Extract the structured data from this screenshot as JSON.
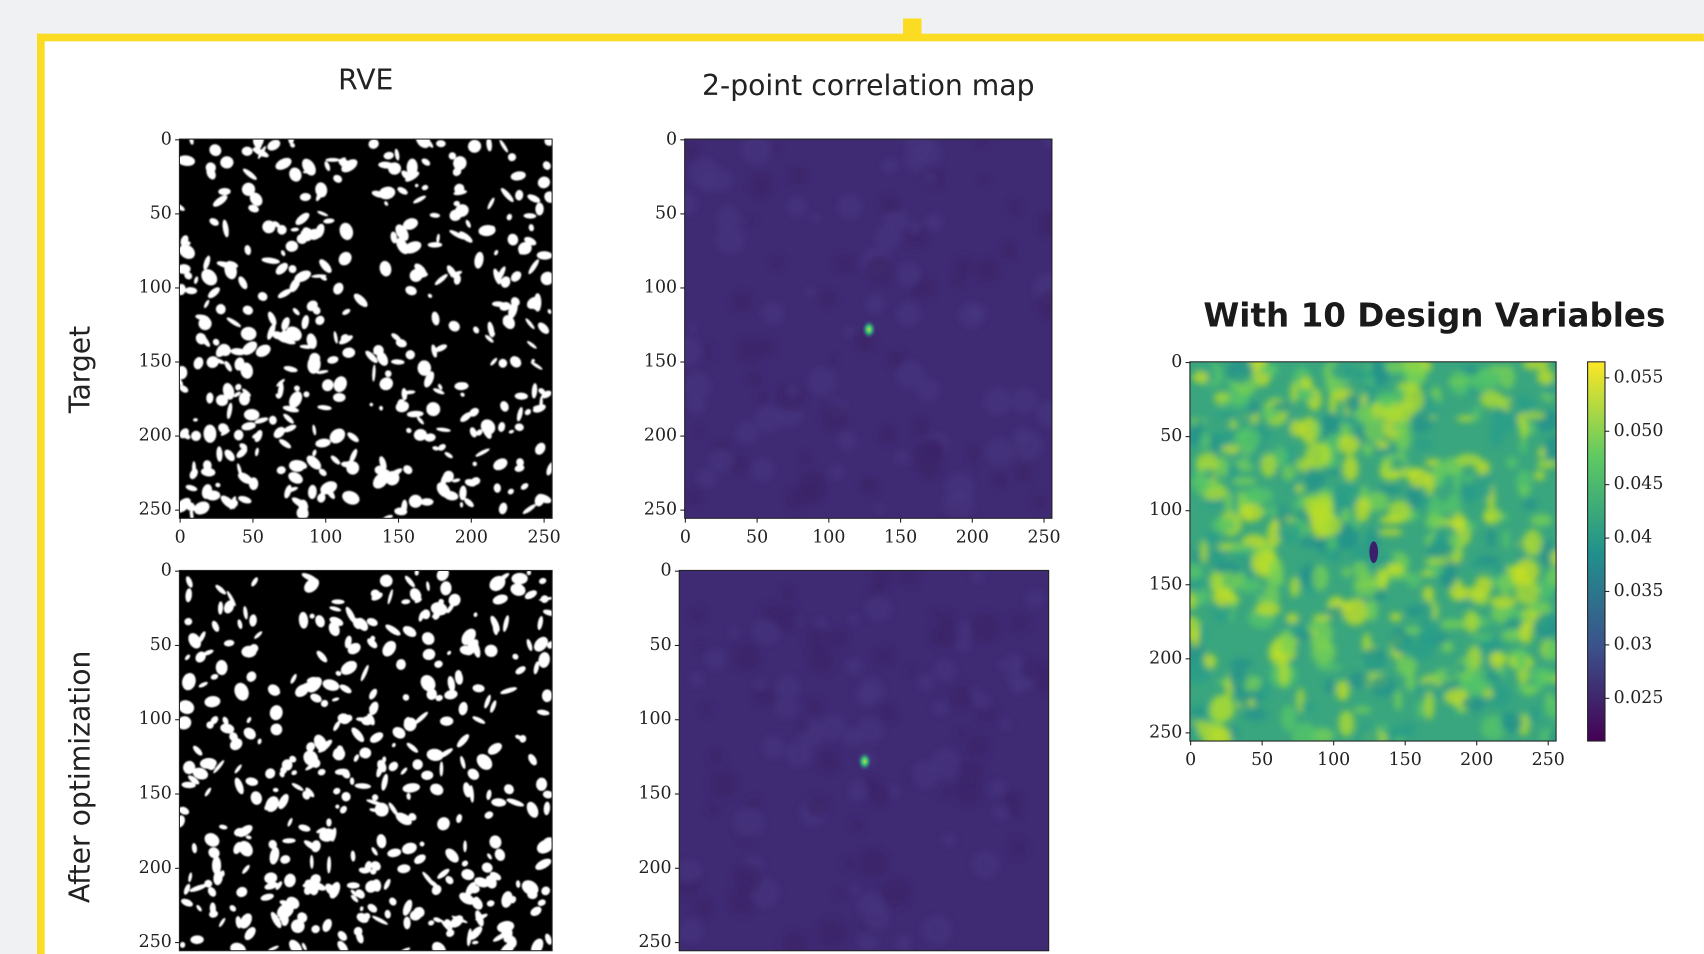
{
  "chart_data": [
    {
      "type": "image",
      "title": "RVE",
      "row_label": "Target",
      "colormap": "binary",
      "xlim": [
        -0.5,
        255.5
      ],
      "ylim": [
        255.5,
        -0.5
      ],
      "xticks": [
        0,
        50,
        100,
        150,
        200,
        250
      ],
      "yticks": [
        0,
        50,
        100,
        150,
        200,
        250
      ]
    },
    {
      "type": "image",
      "title": "2-point correlation map",
      "colormap": "viridis-peak",
      "xlim": [
        -0.5,
        255.5
      ],
      "ylim": [
        255.5,
        -0.5
      ],
      "xticks": [
        0,
        50,
        100,
        150,
        200,
        250
      ],
      "yticks": [
        0,
        50,
        100,
        150,
        200,
        250
      ]
    },
    {
      "type": "image",
      "row_label": "After optimization",
      "colormap": "binary",
      "xlim": [
        -0.5,
        255.5
      ],
      "ylim": [
        255.5,
        -0.5
      ],
      "yticks": [
        0,
        50,
        100,
        150,
        200,
        250
      ]
    },
    {
      "type": "image",
      "colormap": "viridis-peak",
      "xlim": [
        -0.5,
        255.5
      ],
      "ylim": [
        255.5,
        -0.5
      ],
      "yticks": [
        0,
        50,
        100,
        150,
        200,
        250
      ]
    },
    {
      "type": "image",
      "title": "With 10 Design Variables",
      "colormap": "viridis",
      "xlim": [
        -0.5,
        255.5
      ],
      "ylim": [
        255.5,
        -0.5
      ],
      "xticks": [
        0,
        50,
        100,
        150,
        200,
        250
      ],
      "yticks": [
        0,
        50,
        100,
        150,
        200,
        250
      ],
      "colorbar": {
        "lim": [
          0.021,
          0.0565
        ],
        "ticks": [
          0.025,
          0.03,
          0.035,
          0.04,
          0.045,
          {
            "value": 0.05,
            "label": "0.050"
          },
          0.055
        ]
      }
    }
  ]
}
